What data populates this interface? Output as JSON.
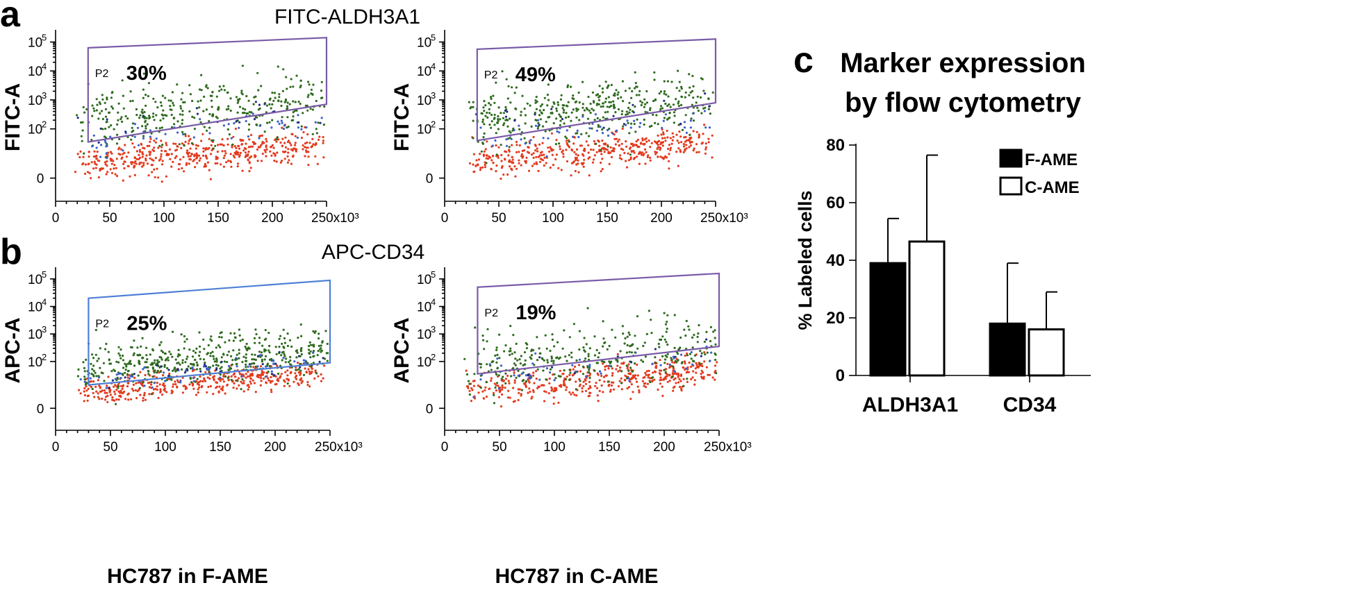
{
  "figure": {
    "panel_letters": {
      "a": "a",
      "b": "b",
      "c": "c"
    },
    "headings": {
      "a": "FITC-ALDH3A1",
      "b": "APC-CD34"
    }
  },
  "chart_data": [
    {
      "type": "scatter",
      "id": "a-left",
      "panel": "a",
      "xlabel": "",
      "ylabel": "FITC-A",
      "xticks": [
        "0",
        "50",
        "100",
        "150",
        "200",
        "250x10³"
      ],
      "yticks": [
        {
          "base": "0",
          "exp": ""
        },
        {
          "base": "10",
          "exp": "2"
        },
        {
          "base": "10",
          "exp": "3"
        },
        {
          "base": "10",
          "exp": "4"
        },
        {
          "base": "10",
          "exp": "5"
        }
      ],
      "xlim": [
        0,
        250000
      ],
      "ylim_decades": [
        -0.5,
        5.3
      ],
      "gate": {
        "name": "P2",
        "percent": "30%",
        "color": "#7a5aa8",
        "x_range": [
          30000,
          250000
        ],
        "y_low": [
          1.55,
          2.85
        ],
        "y_high": [
          4.8,
          5.15
        ]
      },
      "populations": {
        "green": "#2e6b1e",
        "red": "#e23b1f",
        "blue": "#3c5fc8",
        "navy": "#1f2f7a"
      }
    },
    {
      "type": "scatter",
      "id": "a-right",
      "panel": "a",
      "xlabel": "",
      "ylabel": "FITC-A",
      "xticks": [
        "0",
        "50",
        "100",
        "150",
        "200",
        "250x10³"
      ],
      "yticks": [
        {
          "base": "0",
          "exp": ""
        },
        {
          "base": "10",
          "exp": "2"
        },
        {
          "base": "10",
          "exp": "3"
        },
        {
          "base": "10",
          "exp": "4"
        },
        {
          "base": "10",
          "exp": "5"
        }
      ],
      "xlim": [
        0,
        250000
      ],
      "ylim_decades": [
        -0.5,
        5.3
      ],
      "gate": {
        "name": "P2",
        "percent": "49%",
        "color": "#7a5aa8",
        "x_range": [
          30000,
          250000
        ],
        "y_low": [
          1.6,
          2.9
        ],
        "y_high": [
          4.75,
          5.1
        ]
      },
      "populations": {
        "green": "#2e6b1e",
        "red": "#e23b1f",
        "blue": "#3c5fc8",
        "navy": "#1f2f7a"
      }
    },
    {
      "type": "scatter",
      "id": "b-left",
      "panel": "b",
      "xlabel": "HC787 in F-AME",
      "ylabel": "APC-A",
      "xticks": [
        "0",
        "50",
        "100",
        "150",
        "200",
        "250x10³"
      ],
      "yticks": [
        {
          "base": "0",
          "exp": ""
        },
        {
          "base": "10",
          "exp": "2"
        },
        {
          "base": "10",
          "exp": "3"
        },
        {
          "base": "10",
          "exp": "4"
        },
        {
          "base": "10",
          "exp": "5"
        }
      ],
      "xlim": [
        0,
        250000
      ],
      "ylim_decades": [
        -0.5,
        5.3
      ],
      "gate": {
        "name": "P2",
        "percent": "25%",
        "color": "#4d7fd6",
        "x_range": [
          30000,
          250000
        ],
        "y_low": [
          1.15,
          1.95
        ],
        "y_high": [
          4.3,
          4.95
        ]
      },
      "populations": {
        "green": "#2e6b1e",
        "red": "#e23b1f",
        "blue": "#3c5fc8",
        "navy": "#1f2f7a"
      }
    },
    {
      "type": "scatter",
      "id": "b-right",
      "panel": "b",
      "xlabel": "HC787 in C-AME",
      "ylabel": "APC-A",
      "xticks": [
        "0",
        "50",
        "100",
        "150",
        "200",
        "250x10³"
      ],
      "yticks": [
        {
          "base": "0",
          "exp": ""
        },
        {
          "base": "10",
          "exp": "2"
        },
        {
          "base": "10",
          "exp": "3"
        },
        {
          "base": "10",
          "exp": "4"
        },
        {
          "base": "10",
          "exp": "5"
        }
      ],
      "xlim": [
        0,
        250000
      ],
      "ylim_decades": [
        -0.5,
        5.3
      ],
      "gate": {
        "name": "P2",
        "percent": "19%",
        "color": "#7a5aa8",
        "x_range": [
          30000,
          250000
        ],
        "y_low": [
          1.55,
          2.55
        ],
        "y_high": [
          4.7,
          5.2
        ]
      },
      "populations": {
        "green": "#2e6b1e",
        "red": "#e23b1f",
        "blue": "#3c5fc8",
        "navy": "#1f2f7a"
      }
    },
    {
      "type": "bar",
      "id": "c-bar",
      "panel": "c",
      "title": [
        "Marker expression",
        "by flow cytometry"
      ],
      "ylabel": "% Labeled  cells",
      "xlabel": "",
      "categories": [
        "ALDH3A1",
        "CD34"
      ],
      "ylim": [
        0,
        80
      ],
      "yticks": [
        0,
        20,
        40,
        60,
        80
      ],
      "series": [
        {
          "name": "F-AME",
          "fill": "#000000",
          "values": [
            39,
            18
          ],
          "errors": [
            15.5,
            21
          ]
        },
        {
          "name": "C-AME",
          "fill": "#ffffff",
          "values": [
            46.5,
            16
          ],
          "errors": [
            30,
            13
          ]
        }
      ]
    }
  ]
}
